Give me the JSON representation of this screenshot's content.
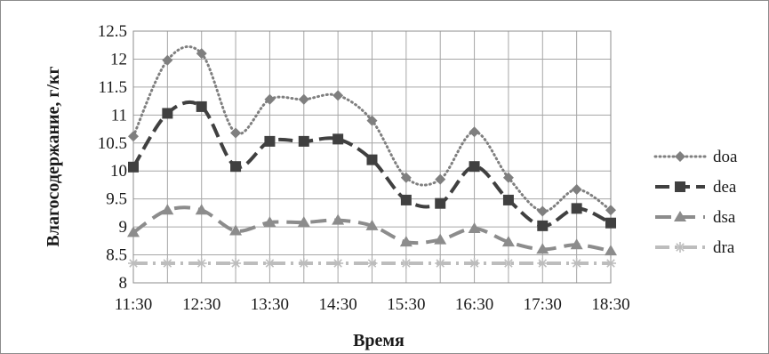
{
  "chart_data": {
    "type": "line",
    "xlabel": "Время",
    "ylabel": "Влагосодержание, г/кг",
    "x_ticks": [
      "11:30",
      "12:30",
      "13:30",
      "14:30",
      "15:30",
      "16:30",
      "17:30",
      "18:30"
    ],
    "x": [
      "11:30",
      "12:00",
      "12:30",
      "13:00",
      "13:30",
      "14:00",
      "14:30",
      "15:00",
      "15:30",
      "16:00",
      "16:30",
      "17:00",
      "17:30",
      "18:00",
      "18:30"
    ],
    "ylim": [
      8,
      12.5
    ],
    "y_ticks": [
      "8",
      "8.5",
      "9",
      "9.5",
      "10",
      "10.5",
      "11",
      "11.5",
      "12",
      "12.5"
    ],
    "grid": true,
    "legend_position": "right",
    "series": [
      {
        "name": "doa",
        "marker": "diamond",
        "dash": "dotted",
        "color": "#7f7f7f",
        "values": [
          10.62,
          11.98,
          12.1,
          10.68,
          11.28,
          11.28,
          11.35,
          10.9,
          9.88,
          9.85,
          10.7,
          9.88,
          9.28,
          9.67,
          9.3
        ]
      },
      {
        "name": "dea",
        "marker": "square",
        "dash": "long-dash",
        "color": "#404040",
        "values": [
          10.07,
          11.03,
          11.15,
          10.08,
          10.53,
          10.53,
          10.57,
          10.2,
          9.48,
          9.42,
          10.08,
          9.48,
          9.02,
          9.33,
          9.07
        ]
      },
      {
        "name": "dsa",
        "marker": "triangle",
        "dash": "dash",
        "color": "#8c8c8c",
        "values": [
          8.9,
          9.3,
          9.3,
          8.93,
          9.08,
          9.08,
          9.12,
          9.02,
          8.73,
          8.77,
          8.97,
          8.73,
          8.6,
          8.68,
          8.57
        ]
      },
      {
        "name": "dra",
        "marker": "asterisk",
        "dash": "dash-dot",
        "color": "#bdbdbd",
        "values": [
          8.35,
          8.35,
          8.35,
          8.35,
          8.35,
          8.35,
          8.35,
          8.35,
          8.35,
          8.35,
          8.35,
          8.35,
          8.35,
          8.35,
          8.35
        ]
      }
    ]
  }
}
